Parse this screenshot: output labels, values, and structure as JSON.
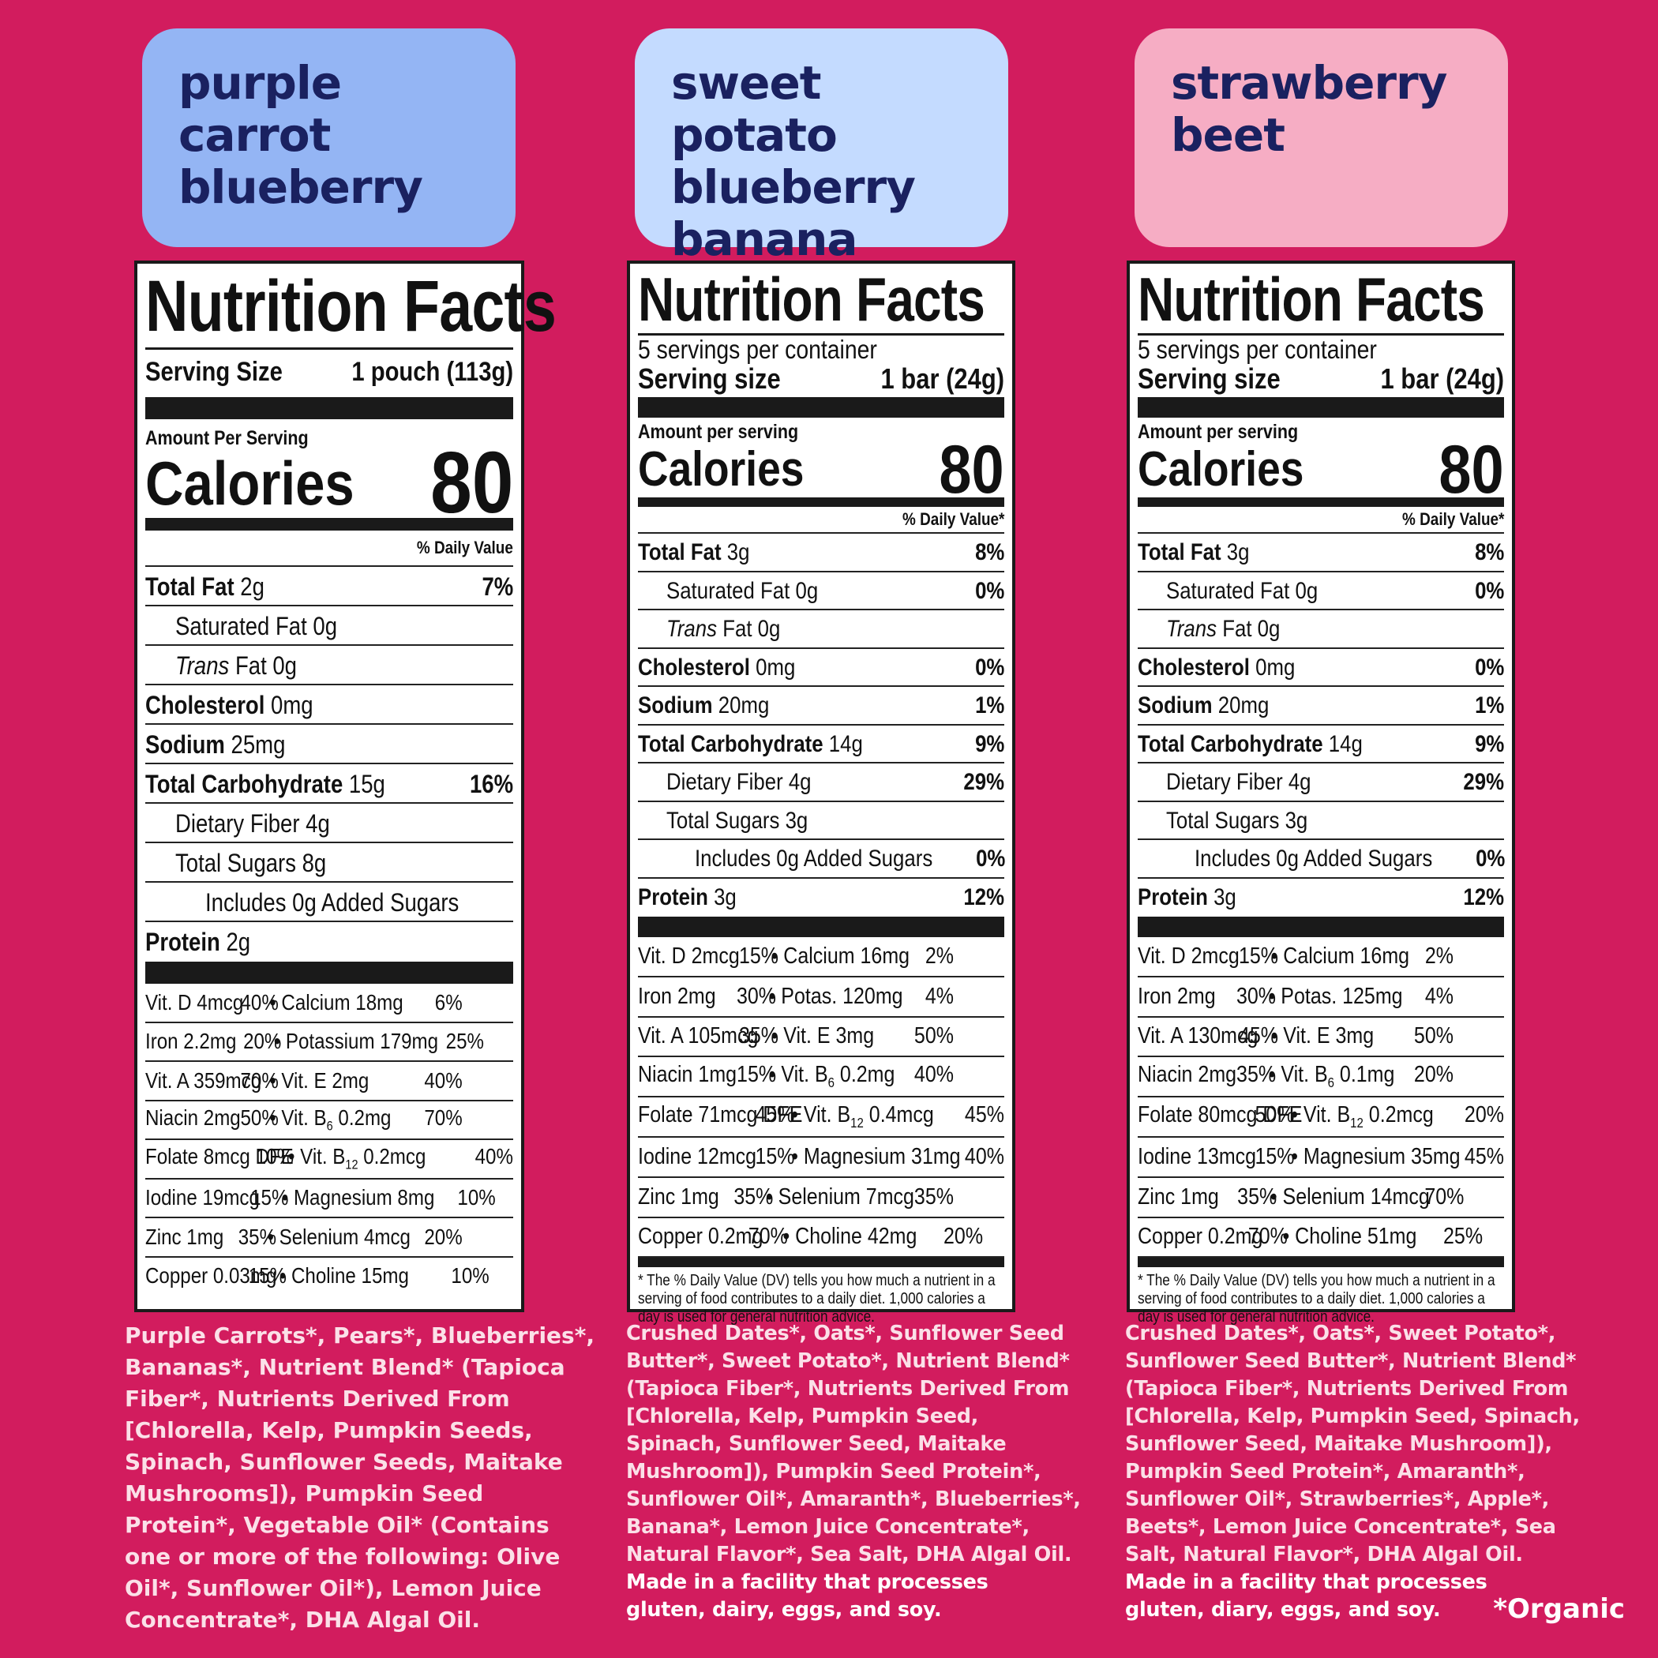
{
  "colors": {
    "background": "#d21c5e",
    "box1": "#94b5f4",
    "box2": "#c4dbff",
    "box3": "#f6adc4",
    "title_text": "#1a2160"
  },
  "products": [
    {
      "title_lines": [
        "purple carrot",
        "blueberry"
      ],
      "panel": {
        "title": "Nutrition Facts",
        "servings": "",
        "serving_label": "Serving Size",
        "serving_value": "1 pouch (113g)",
        "amount_label": "Amount Per Serving",
        "calories_label": "Calories",
        "calories_value": "80",
        "dv_header": "% Daily Value",
        "nutrients": [
          {
            "name": "Total Fat",
            "amount": "2g",
            "dv": "7%",
            "bold": true,
            "indent": 0
          },
          {
            "name": "Saturated Fat 0g",
            "amount": "",
            "dv": "",
            "bold": false,
            "indent": 1
          },
          {
            "name": "Trans",
            "amount": "Fat 0g",
            "dv": "",
            "bold": false,
            "indent": 1,
            "italic": true
          },
          {
            "name": "Cholesterol",
            "amount": "0mg",
            "dv": "",
            "bold": true,
            "indent": 0
          },
          {
            "name": "Sodium",
            "amount": "25mg",
            "dv": "",
            "bold": true,
            "indent": 0
          },
          {
            "name": "Total Carbohydrate",
            "amount": "15g",
            "dv": "16%",
            "bold": true,
            "indent": 0
          },
          {
            "name": "Dietary Fiber 4g",
            "amount": "",
            "dv": "",
            "bold": false,
            "indent": 1
          },
          {
            "name": "Total Sugars 8g",
            "amount": "",
            "dv": "",
            "bold": false,
            "indent": 1
          },
          {
            "name": "Includes 0g Added Sugars",
            "amount": "",
            "dv": "",
            "bold": false,
            "indent": 2
          },
          {
            "name": "Protein",
            "amount": "2g",
            "dv": "",
            "bold": true,
            "indent": 0
          }
        ],
        "micros": [
          [
            "Vit. D 4mcg",
            "40%",
            "• Calcium 18mg",
            "6%"
          ],
          [
            "Iron 2.2mg",
            "20%",
            "• Potassium 179mg",
            "25%"
          ],
          [
            "Vit. A 359mcg",
            "70%",
            "• Vit. E 2mg",
            "40%"
          ],
          [
            "Niacin 2mg",
            "50%",
            "• Vit. B6 0.2mg",
            "70%"
          ],
          [
            "Folate 8mcg DFE",
            "10%",
            "• Vit. B12 0.2mcg",
            "40%"
          ],
          [
            "Iodine 19mcg",
            "15%",
            "• Magnesium 8mg",
            "10%"
          ],
          [
            "Zinc 1mg",
            "35%",
            "• Selenium 4mcg",
            "20%"
          ],
          [
            "Copper 0.03mg",
            "15%",
            "• Choline 15mg",
            "10%"
          ]
        ],
        "footnote": ""
      },
      "ingredients": "Purple Carrots*, Pears*, Blueberries*,\nBananas*, Nutrient Blend* (Tapioca\nFiber*, Nutrients Derived From\n[Chlorella, Kelp, Pumpkin Seeds,\nSpinach, Sunflower Seeds, Maitake\nMushrooms]), Pumpkin Seed\nProtein*, Vegetable Oil* (Contains\none or more of the following: Olive\nOil*, Sunflower Oil*), Lemon Juice\nConcentrate*, DHA Algal Oil.",
      "allergen": ""
    },
    {
      "title_lines": [
        "sweet potato",
        "blueberry",
        "banana"
      ],
      "panel": {
        "title": "Nutrition Facts",
        "servings": "5 servings per container",
        "serving_label": "Serving size",
        "serving_value": "1 bar (24g)",
        "amount_label": "Amount per serving",
        "calories_label": "Calories",
        "calories_value": "80",
        "dv_header": "% Daily Value*",
        "nutrients": [
          {
            "name": "Total Fat",
            "amount": "3g",
            "dv": "8%",
            "bold": true,
            "indent": 0
          },
          {
            "name": "Saturated Fat 0g",
            "amount": "",
            "dv": "0%",
            "bold": false,
            "indent": 1
          },
          {
            "name": "Trans",
            "amount": "Fat 0g",
            "dv": "",
            "bold": false,
            "indent": 1,
            "italic": true
          },
          {
            "name": "Cholesterol",
            "amount": "0mg",
            "dv": "0%",
            "bold": true,
            "indent": 0
          },
          {
            "name": "Sodium",
            "amount": "20mg",
            "dv": "1%",
            "bold": true,
            "indent": 0
          },
          {
            "name": "Total Carbohydrate",
            "amount": "14g",
            "dv": "9%",
            "bold": true,
            "indent": 0
          },
          {
            "name": "Dietary Fiber 4g",
            "amount": "",
            "dv": "29%",
            "bold": false,
            "indent": 1
          },
          {
            "name": "Total Sugars 3g",
            "amount": "",
            "dv": "",
            "bold": false,
            "indent": 1
          },
          {
            "name": "Includes 0g Added Sugars",
            "amount": "",
            "dv": "0%",
            "bold": false,
            "indent": 2
          },
          {
            "name": "Protein",
            "amount": "3g",
            "dv": "12%",
            "bold": true,
            "indent": 0
          }
        ],
        "micros": [
          [
            "Vit. D 2mcg",
            "15%",
            "• Calcium 16mg",
            "2%"
          ],
          [
            "Iron 2mg",
            "30%",
            "• Potas. 120mg",
            "4%"
          ],
          [
            "Vit. A 105mcg",
            "35%",
            "• Vit. E 3mg",
            "50%"
          ],
          [
            "Niacin 1mg",
            "15%",
            "• Vit. B6 0.2mg",
            "40%"
          ],
          [
            "Folate 71mcg DFE",
            "45%",
            "• Vit. B12 0.4mcg",
            "45%"
          ],
          [
            "Iodine 12mcg",
            "15%",
            "• Magnesium 31mg",
            "40%"
          ],
          [
            "Zinc 1mg",
            "35%",
            "• Selenium 7mcg",
            "35%"
          ],
          [
            "Copper 0.2mg",
            "70%",
            "• Choline 42mg",
            "20%"
          ]
        ],
        "footnote": "* The % Daily Value (DV) tells you how much a nutrient in a serving of food contributes to a daily diet. 1,000 calories a day is used for general nutrition advice."
      },
      "ingredients": "Crushed Dates*, Oats*, Sunflower Seed\nButter*, Sweet Potato*, Nutrient Blend*\n(Tapioca Fiber*, Nutrients Derived From\n[Chlorella, Kelp, Pumpkin Seed,\nSpinach, Sunflower Seed, Maitake\nMushroom]), Pumpkin Seed Protein*,\nSunflower Oil*, Amaranth*, Blueberries*,\nBanana*, Lemon Juice Concentrate*,\nNatural Flavor*, Sea Salt, DHA Algal Oil.",
      "allergen": "Made in a facility that processes\ngluten, dairy, eggs, and soy."
    },
    {
      "title_lines": [
        "strawberry",
        "beet"
      ],
      "panel": {
        "title": "Nutrition Facts",
        "servings": "5 servings per container",
        "serving_label": "Serving size",
        "serving_value": "1 bar (24g)",
        "amount_label": "Amount per serving",
        "calories_label": "Calories",
        "calories_value": "80",
        "dv_header": "% Daily Value*",
        "nutrients": [
          {
            "name": "Total Fat",
            "amount": "3g",
            "dv": "8%",
            "bold": true,
            "indent": 0
          },
          {
            "name": "Saturated Fat 0g",
            "amount": "",
            "dv": "0%",
            "bold": false,
            "indent": 1
          },
          {
            "name": "Trans",
            "amount": "Fat 0g",
            "dv": "",
            "bold": false,
            "indent": 1,
            "italic": true
          },
          {
            "name": "Cholesterol",
            "amount": "0mg",
            "dv": "0%",
            "bold": true,
            "indent": 0
          },
          {
            "name": "Sodium",
            "amount": "20mg",
            "dv": "1%",
            "bold": true,
            "indent": 0
          },
          {
            "name": "Total Carbohydrate",
            "amount": "14g",
            "dv": "9%",
            "bold": true,
            "indent": 0
          },
          {
            "name": "Dietary Fiber 4g",
            "amount": "",
            "dv": "29%",
            "bold": false,
            "indent": 1
          },
          {
            "name": "Total Sugars 3g",
            "amount": "",
            "dv": "",
            "bold": false,
            "indent": 1
          },
          {
            "name": "Includes 0g Added Sugars",
            "amount": "",
            "dv": "0%",
            "bold": false,
            "indent": 2
          },
          {
            "name": "Protein",
            "amount": "3g",
            "dv": "12%",
            "bold": true,
            "indent": 0
          }
        ],
        "micros": [
          [
            "Vit. D 2mcg",
            "15%",
            "• Calcium 16mg",
            "2%"
          ],
          [
            "Iron 2mg",
            "30%",
            "• Potas. 125mg",
            "4%"
          ],
          [
            "Vit. A 130mcg",
            "45%",
            "• Vit. E 3mg",
            "50%"
          ],
          [
            "Niacin 2mg",
            "35%",
            "• Vit. B6 0.1mg",
            "20%"
          ],
          [
            "Folate 80mcg DFE",
            "50%",
            "• Vit. B12 0.2mcg",
            "20%"
          ],
          [
            "Iodine 13mcg",
            "15%",
            "• Magnesium 35mg",
            "45%"
          ],
          [
            "Zinc 1mg",
            "35%",
            "• Selenium 14mcg",
            "70%"
          ],
          [
            "Copper 0.2mg",
            "70%",
            "• Choline 51mg",
            "25%"
          ]
        ],
        "footnote": "* The % Daily Value (DV) tells you how much a nutrient in a serving of food contributes to a daily diet. 1,000 calories a day is used for general nutrition advice."
      },
      "ingredients": "Crushed Dates*, Oats*, Sweet Potato*,\nSunflower Seed Butter*, Nutrient Blend*\n(Tapioca Fiber*, Nutrients Derived From\n[Chlorella, Kelp, Pumpkin Seed, Spinach,\nSunflower Seed, Maitake Mushroom]),\nPumpkin Seed Protein*, Amaranth*,\nSunflower Oil*, Strawberries*, Apple*,\nBeets*, Lemon Juice Concentrate*, Sea\nSalt, Natural Flavor*, DHA Algal Oil.",
      "allergen": "Made in a facility that processes\ngluten, diary, eggs, and soy."
    }
  ],
  "organic_note": "*Organic"
}
